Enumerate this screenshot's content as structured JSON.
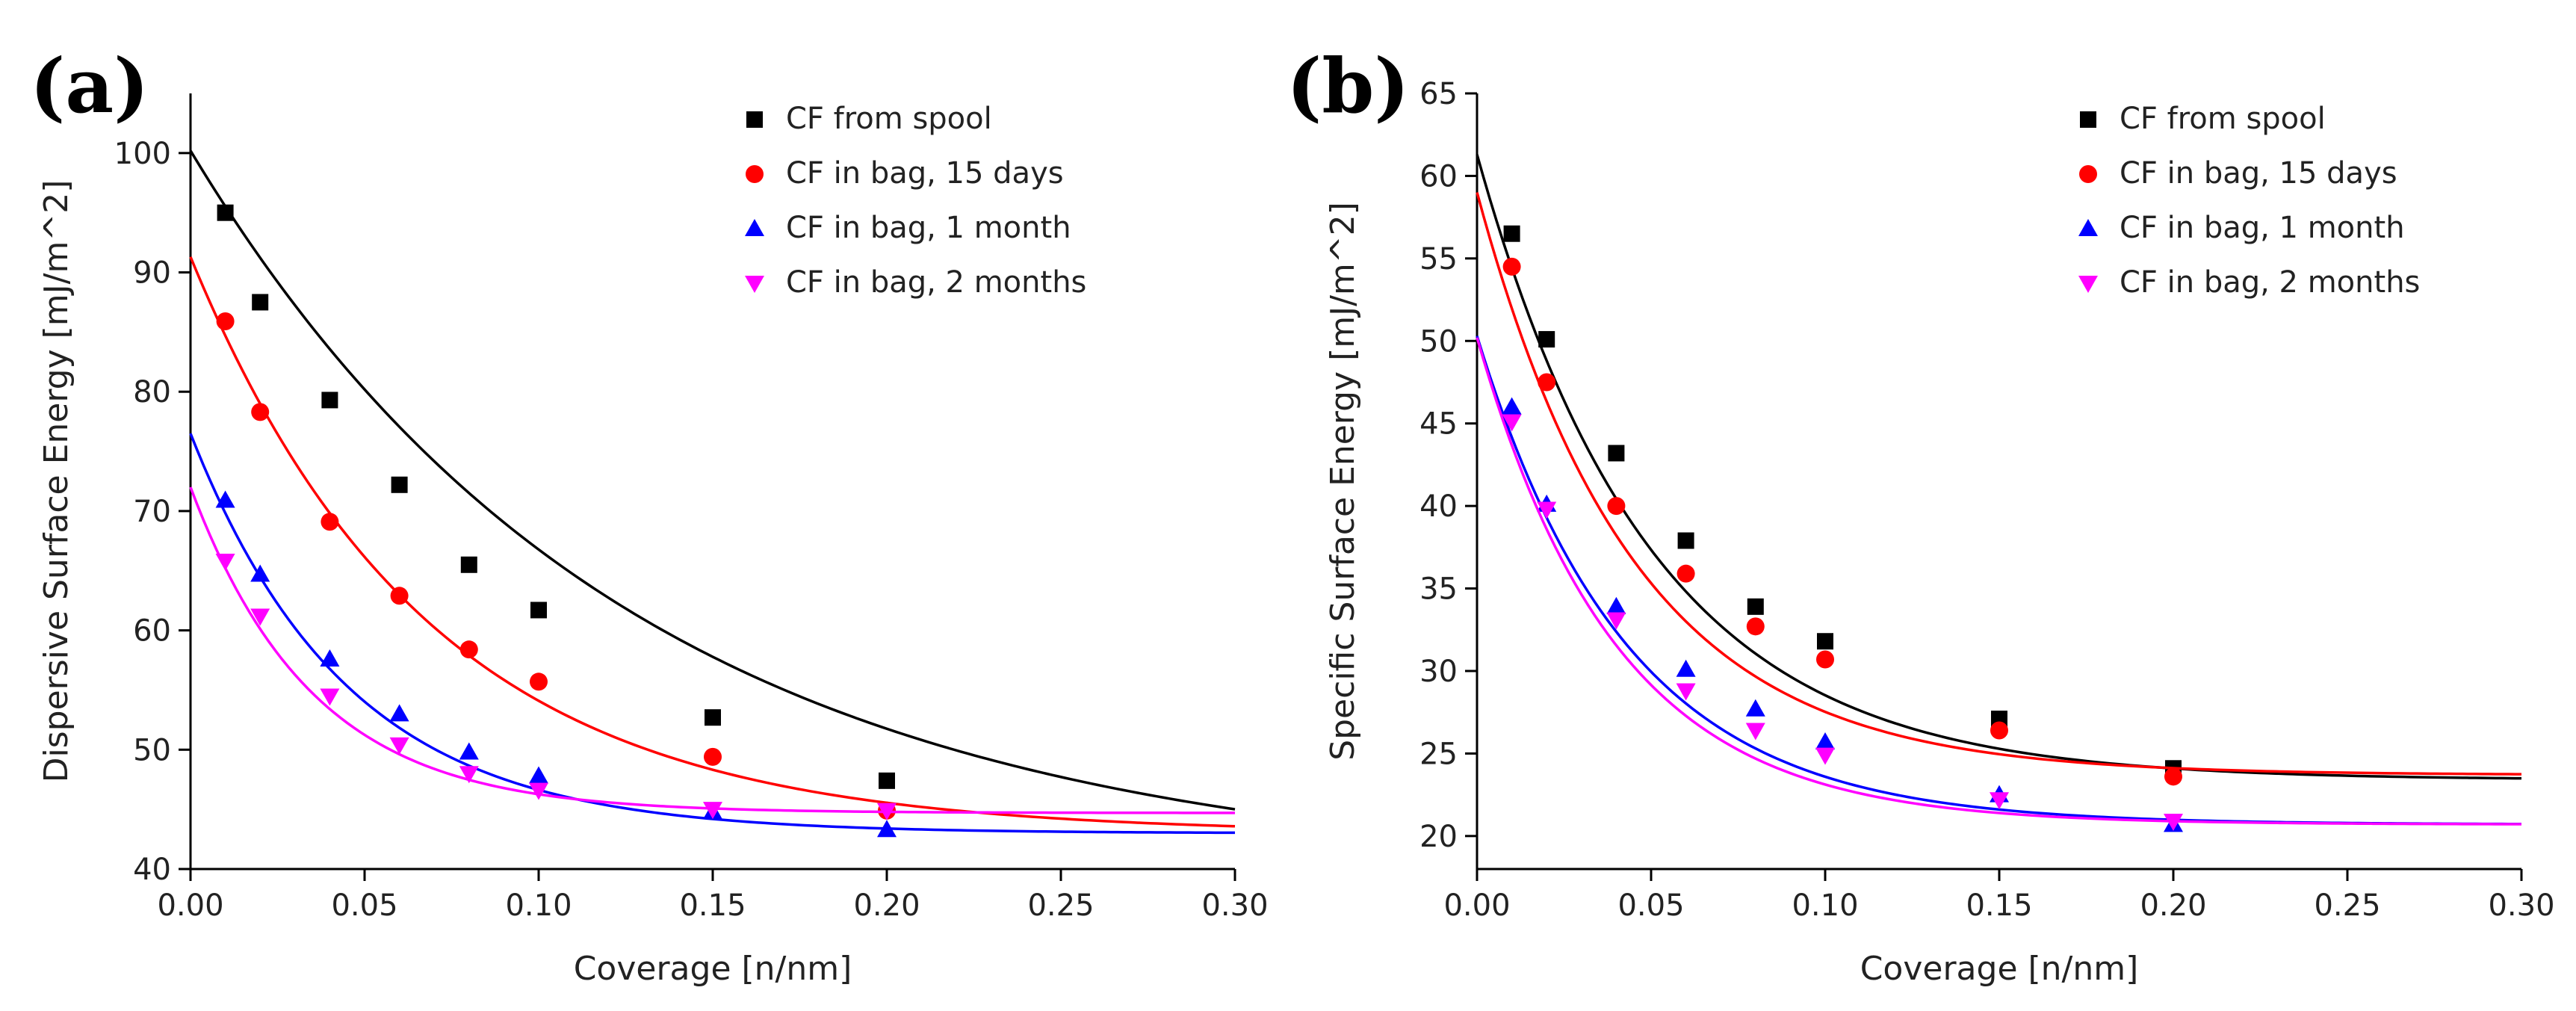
{
  "chart_data": [
    {
      "type": "scatter",
      "panel_label": "(a)",
      "xlabel": "Coverage [n/nm]",
      "ylabel": "Dispersive Surface Energy [mJ/m^2]",
      "xlim": [
        0,
        0.3
      ],
      "ylim": [
        40,
        105
      ],
      "xticks": [
        0,
        0.05,
        0.1,
        0.15,
        0.2,
        0.25,
        0.3
      ],
      "xtick_labels": [
        "0.00",
        "0.05",
        "0.10",
        "0.15",
        "0.20",
        "0.25",
        "0.30"
      ],
      "yticks": [
        40,
        50,
        60,
        70,
        80,
        90,
        100
      ],
      "ytick_labels": [
        "40",
        "50",
        "60",
        "70",
        "80",
        "90",
        "100"
      ],
      "grid": false,
      "legend_position": "top-right",
      "series": [
        {
          "name": "CF from spool",
          "marker": "square",
          "color": "#000000",
          "x": [
            0.01,
            0.02,
            0.04,
            0.06,
            0.08,
            0.1,
            0.15,
            0.2
          ],
          "y": [
            95.0,
            87.5,
            79.3,
            72.2,
            65.5,
            61.7,
            52.7,
            47.4
          ],
          "fit": {
            "y0": 39.5,
            "A": 60.7,
            "t": 0.125
          }
        },
        {
          "name": "CF in bag, 15 days",
          "marker": "circle",
          "color": "#ff0000",
          "x": [
            0.01,
            0.02,
            0.04,
            0.06,
            0.08,
            0.1,
            0.15,
            0.2
          ],
          "y": [
            85.9,
            78.3,
            69.1,
            62.9,
            58.4,
            55.7,
            49.4,
            44.9
          ],
          "fit": {
            "y0": 43.0,
            "A": 48.3,
            "t": 0.068
          }
        },
        {
          "name": "CF in bag, 1 month",
          "marker": "triangle-up",
          "color": "#0000ff",
          "x": [
            0.01,
            0.02,
            0.04,
            0.06,
            0.08,
            0.1,
            0.15,
            0.2
          ],
          "y": [
            70.9,
            64.7,
            57.6,
            53.0,
            49.8,
            47.8,
            44.8,
            43.3
          ],
          "fit": {
            "y0": 43.0,
            "A": 33.5,
            "t": 0.045
          }
        },
        {
          "name": "CF in bag, 2 months",
          "marker": "triangle-down",
          "color": "#ff00ff",
          "x": [
            0.01,
            0.02,
            0.04,
            0.06,
            0.08,
            0.1,
            0.15,
            0.2
          ],
          "y": [
            65.8,
            61.2,
            54.5,
            50.4,
            48.0,
            46.6,
            45.0,
            44.9
          ],
          "fit": {
            "y0": 44.7,
            "A": 27.3,
            "t": 0.035
          }
        }
      ]
    },
    {
      "type": "scatter",
      "panel_label": "(b)",
      "xlabel": "Coverage [n/nm]",
      "ylabel": "Specific Surface Energy [mJ/m^2]",
      "xlim": [
        0,
        0.3
      ],
      "ylim": [
        18,
        65
      ],
      "xticks": [
        0,
        0.05,
        0.1,
        0.15,
        0.2,
        0.25,
        0.3
      ],
      "xtick_labels": [
        "0.00",
        "0.05",
        "0.10",
        "0.15",
        "0.20",
        "0.25",
        "0.30"
      ],
      "yticks": [
        20,
        25,
        30,
        35,
        40,
        45,
        50,
        55,
        60,
        65
      ],
      "ytick_labels": [
        "20",
        "25",
        "30",
        "35",
        "40",
        "45",
        "50",
        "55",
        "60",
        "65"
      ],
      "grid": false,
      "legend_position": "top-right",
      "series": [
        {
          "name": "CF from spool",
          "marker": "square",
          "color": "#000000",
          "x": [
            0.01,
            0.02,
            0.04,
            0.06,
            0.08,
            0.1,
            0.15,
            0.2
          ],
          "y": [
            56.5,
            50.1,
            43.2,
            37.9,
            33.9,
            31.8,
            27.1,
            24.1
          ],
          "fit": {
            "y0": 23.4,
            "A": 37.9,
            "t": 0.05
          }
        },
        {
          "name": "CF in bag, 15 days",
          "marker": "circle",
          "color": "#ff0000",
          "x": [
            0.01,
            0.02,
            0.04,
            0.06,
            0.08,
            0.1,
            0.15,
            0.2
          ],
          "y": [
            54.5,
            47.5,
            40.0,
            35.9,
            32.7,
            30.7,
            26.4,
            23.6
          ],
          "fit": {
            "y0": 23.7,
            "A": 35.3,
            "t": 0.045
          }
        },
        {
          "name": "CF in bag, 1 month",
          "marker": "triangle-up",
          "color": "#0000ff",
          "x": [
            0.01,
            0.02,
            0.04,
            0.06,
            0.08,
            0.1,
            0.15,
            0.2
          ],
          "y": [
            46.0,
            40.1,
            33.9,
            30.1,
            27.7,
            25.7,
            22.5,
            20.7
          ],
          "fit": {
            "y0": 20.7,
            "A": 29.6,
            "t": 0.043
          }
        },
        {
          "name": "CF in bag, 2 months",
          "marker": "triangle-down",
          "color": "#ff00ff",
          "x": [
            0.01,
            0.02,
            0.04,
            0.06,
            0.08,
            0.1,
            0.15,
            0.2
          ],
          "y": [
            45.1,
            39.8,
            33.1,
            28.8,
            26.4,
            24.9,
            22.2,
            20.9
          ],
          "fit": {
            "y0": 20.7,
            "A": 29.5,
            "t": 0.04
          }
        }
      ]
    }
  ]
}
